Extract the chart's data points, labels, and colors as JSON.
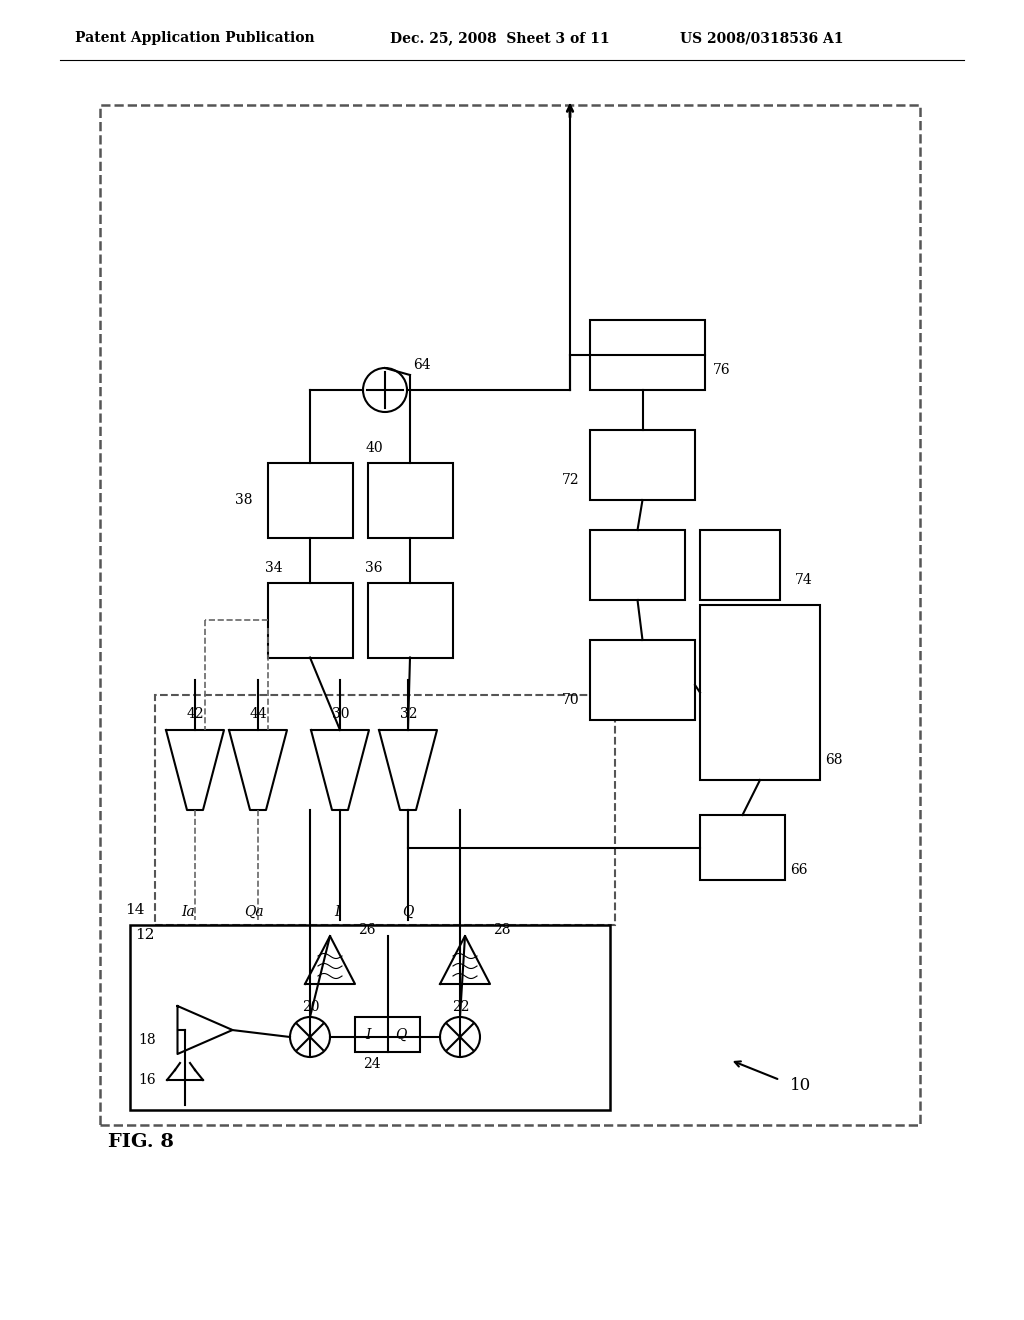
{
  "title_left": "Patent Application Publication",
  "title_mid": "Dec. 25, 2008  Sheet 3 of 11",
  "title_right": "US 2008/0318536 A1",
  "fig_label": "FIG. 8",
  "ref_label": "10",
  "bg_color": "#ffffff",
  "line_color": "#000000",
  "dashed_color": "#666666"
}
